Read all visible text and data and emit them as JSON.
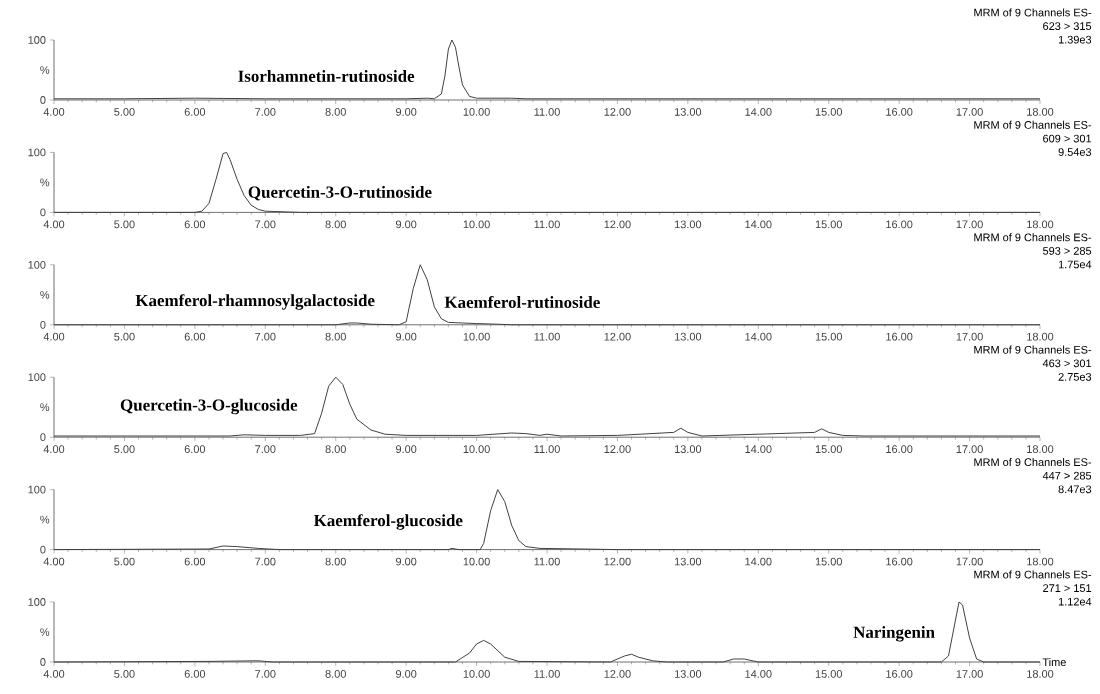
{
  "chart_data": [
    {
      "type": "line",
      "ylabel": "%",
      "annotations": [
        "Isorhamnetin-rutinoside",
        "MRM of 9 Channels ES-",
        "623 > 315",
        "1.39e3"
      ],
      "xlim": [
        4,
        18
      ],
      "ylim": [
        0,
        100
      ],
      "xticks": [
        {
          "value": 4,
          "label": "4.00"
        },
        {
          "value": 5,
          "label": "5.00"
        },
        {
          "value": 6,
          "label": "6.00"
        },
        {
          "value": 7,
          "label": "7.00"
        },
        {
          "value": 8,
          "label": "8.00"
        },
        {
          "value": 9,
          "label": "9.00"
        },
        {
          "value": 10,
          "label": "10.00"
        },
        {
          "value": 11,
          "label": "11.00"
        },
        {
          "value": 12,
          "label": "12.00"
        },
        {
          "value": 13,
          "label": "13.00"
        },
        {
          "value": 14,
          "label": "14.00"
        },
        {
          "value": 15,
          "label": "15.00"
        },
        {
          "value": 16,
          "label": "16.00"
        },
        {
          "value": 17,
          "label": "17.00"
        },
        {
          "value": 18,
          "label": "18.00"
        }
      ],
      "yticks": [
        0,
        100
      ],
      "series": [
        {
          "color": "#404040",
          "x": [
            4,
            5,
            6,
            7,
            8,
            9,
            9.3,
            9.4,
            9.5,
            9.55,
            9.6,
            9.65,
            9.7,
            9.75,
            9.8,
            9.9,
            10.0,
            10.5,
            10.7,
            12,
            14,
            16,
            18
          ],
          "values": [
            2,
            2,
            3,
            2,
            2,
            2,
            3,
            2,
            10,
            40,
            85,
            100,
            88,
            55,
            25,
            6,
            3,
            3,
            2,
            2,
            2,
            2,
            2
          ]
        }
      ]
    },
    {
      "type": "line",
      "ylabel": "%",
      "annotations": [
        "Quercetin-3-O-rutinoside",
        "MRM of 9 Channels ES-",
        "609 > 301",
        "9.54e3"
      ],
      "xlim": [
        4,
        18
      ],
      "ylim": [
        0,
        100
      ],
      "xticks": [
        {
          "value": 4,
          "label": "4.00"
        },
        {
          "value": 5,
          "label": "5.00"
        },
        {
          "value": 6,
          "label": "6.00"
        },
        {
          "value": 7,
          "label": "7.00"
        },
        {
          "value": 8,
          "label": "8.00"
        },
        {
          "value": 9,
          "label": "9.00"
        },
        {
          "value": 10,
          "label": "10.00"
        },
        {
          "value": 11,
          "label": "11.00"
        },
        {
          "value": 12,
          "label": "12.00"
        },
        {
          "value": 13,
          "label": "13.00"
        },
        {
          "value": 14,
          "label": "14.00"
        },
        {
          "value": 15,
          "label": "15.00"
        },
        {
          "value": 16,
          "label": "16.00"
        },
        {
          "value": 17,
          "label": "17.00"
        },
        {
          "value": 18,
          "label": "18.00"
        }
      ],
      "yticks": [
        0,
        100
      ],
      "series": [
        {
          "color": "#404040",
          "x": [
            4,
            6.0,
            6.1,
            6.2,
            6.3,
            6.4,
            6.45,
            6.5,
            6.6,
            6.7,
            6.8,
            6.9,
            7.0,
            7.5,
            18
          ],
          "values": [
            0,
            0,
            2,
            15,
            55,
            98,
            100,
            88,
            55,
            28,
            12,
            5,
            2,
            0,
            0
          ]
        }
      ]
    },
    {
      "type": "line",
      "ylabel": "%",
      "annotations": [
        "Kaemferol-rhamnosylgalactoside",
        "Kaemferol-rutinoside",
        "MRM of 9 Channels ES-",
        "593 > 285",
        "1.75e4"
      ],
      "xlim": [
        4,
        18
      ],
      "ylim": [
        0,
        100
      ],
      "xticks": [
        {
          "value": 4,
          "label": "4.00"
        },
        {
          "value": 5,
          "label": "5.00"
        },
        {
          "value": 6,
          "label": "6.00"
        },
        {
          "value": 7,
          "label": "7.00"
        },
        {
          "value": 8,
          "label": "8.00"
        },
        {
          "value": 9,
          "label": "9.00"
        },
        {
          "value": 10,
          "label": "10.00"
        },
        {
          "value": 11,
          "label": "11.00"
        },
        {
          "value": 12,
          "label": "12.00"
        },
        {
          "value": 13,
          "label": "13.00"
        },
        {
          "value": 14,
          "label": "14.00"
        },
        {
          "value": 15,
          "label": "15.00"
        },
        {
          "value": 16,
          "label": "16.00"
        },
        {
          "value": 17,
          "label": "17.00"
        },
        {
          "value": 18,
          "label": "18.00"
        }
      ],
      "yticks": [
        0,
        100
      ],
      "series": [
        {
          "color": "#404040",
          "x": [
            4,
            8.0,
            8.2,
            8.3,
            8.5,
            8.9,
            9.0,
            9.1,
            9.2,
            9.3,
            9.4,
            9.5,
            9.6,
            9.8,
            10.0,
            10.3,
            10.5,
            18
          ],
          "values": [
            0,
            0,
            3,
            3,
            1,
            0,
            5,
            60,
            100,
            75,
            30,
            10,
            4,
            3,
            2,
            1,
            0,
            0
          ]
        }
      ]
    },
    {
      "type": "line",
      "ylabel": "%",
      "annotations": [
        "Quercetin-3-O-glucoside",
        "MRM of 9 Channels ES-",
        "463 > 301",
        "2.75e3"
      ],
      "xlim": [
        4,
        18
      ],
      "ylim": [
        0,
        100
      ],
      "xticks": [
        {
          "value": 4,
          "label": "4.00"
        },
        {
          "value": 5,
          "label": "5.00"
        },
        {
          "value": 6,
          "label": "6.00"
        },
        {
          "value": 7,
          "label": "7.00"
        },
        {
          "value": 8,
          "label": "8.00"
        },
        {
          "value": 9,
          "label": "9.00"
        },
        {
          "value": 10,
          "label": "10.00"
        },
        {
          "value": 11,
          "label": "11.00"
        },
        {
          "value": 12,
          "label": "12.00"
        },
        {
          "value": 13,
          "label": "13.00"
        },
        {
          "value": 14,
          "label": "14.00"
        },
        {
          "value": 15,
          "label": "15.00"
        },
        {
          "value": 16,
          "label": "16.00"
        },
        {
          "value": 17,
          "label": "17.00"
        },
        {
          "value": 18,
          "label": "18.00"
        }
      ],
      "yticks": [
        0,
        100
      ],
      "series": [
        {
          "color": "#404040",
          "x": [
            4,
            6.5,
            6.7,
            7.0,
            7.5,
            7.7,
            7.8,
            7.9,
            8.0,
            8.1,
            8.2,
            8.3,
            8.5,
            8.7,
            9.0,
            10.0,
            10.5,
            10.7,
            10.9,
            11.0,
            11.2,
            12.0,
            12.8,
            12.9,
            13.0,
            13.2,
            14.8,
            14.9,
            15.0,
            15.2,
            15.5,
            18
          ],
          "values": [
            2,
            2,
            4,
            3,
            3,
            6,
            40,
            85,
            100,
            88,
            55,
            30,
            12,
            5,
            3,
            3,
            7,
            6,
            3,
            5,
            2,
            3,
            8,
            15,
            8,
            2,
            8,
            14,
            8,
            3,
            2,
            2
          ]
        }
      ]
    },
    {
      "type": "line",
      "ylabel": "%",
      "annotations": [
        "Kaemferol-glucoside",
        "MRM of 9 Channels ES-",
        "447 > 285",
        "8.47e3"
      ],
      "xlim": [
        4,
        18
      ],
      "ylim": [
        0,
        100
      ],
      "xticks": [
        {
          "value": 4,
          "label": "4.00"
        },
        {
          "value": 5,
          "label": "5.00"
        },
        {
          "value": 6,
          "label": "6.00"
        },
        {
          "value": 7,
          "label": "7.00"
        },
        {
          "value": 8,
          "label": "8.00"
        },
        {
          "value": 9,
          "label": "9.00"
        },
        {
          "value": 10,
          "label": "10.00"
        },
        {
          "value": 11,
          "label": "11.00"
        },
        {
          "value": 12,
          "label": "12.00"
        },
        {
          "value": 13,
          "label": "13.00"
        },
        {
          "value": 14,
          "label": "14.00"
        },
        {
          "value": 15,
          "label": "15.00"
        },
        {
          "value": 16,
          "label": "16.00"
        },
        {
          "value": 17,
          "label": "17.00"
        },
        {
          "value": 18,
          "label": "18.00"
        }
      ],
      "yticks": [
        0,
        100
      ],
      "series": [
        {
          "color": "#404040",
          "x": [
            4,
            6.2,
            6.4,
            6.6,
            6.9,
            7.2,
            9.6,
            9.65,
            9.75,
            10.05,
            10.1,
            10.2,
            10.3,
            10.4,
            10.5,
            10.6,
            10.7,
            10.9,
            11.5,
            12,
            18
          ],
          "values": [
            0,
            1,
            6,
            5,
            2,
            0,
            0,
            2,
            0,
            0,
            10,
            65,
            100,
            80,
            40,
            15,
            5,
            2,
            1,
            0,
            0
          ]
        }
      ]
    },
    {
      "type": "line",
      "ylabel": "%",
      "xlabel": "Time",
      "annotations": [
        "Naringenin",
        "MRM of 9 Channels ES-",
        "271 > 151",
        "1.12e4"
      ],
      "xlim": [
        4,
        18
      ],
      "ylim": [
        0,
        100
      ],
      "xticks": [
        {
          "value": 4,
          "label": "4.00"
        },
        {
          "value": 5,
          "label": "5.00"
        },
        {
          "value": 6,
          "label": "6.00"
        },
        {
          "value": 7,
          "label": "7.00"
        },
        {
          "value": 8,
          "label": "8.00"
        },
        {
          "value": 9,
          "label": "9.00"
        },
        {
          "value": 10,
          "label": "10.00"
        },
        {
          "value": 11,
          "label": "11.00"
        },
        {
          "value": 12,
          "label": "12.00"
        },
        {
          "value": 13,
          "label": "13.00"
        },
        {
          "value": 14,
          "label": "14.00"
        },
        {
          "value": 15,
          "label": "15.00"
        },
        {
          "value": 16,
          "label": "16.00"
        },
        {
          "value": 17,
          "label": "17.00"
        },
        {
          "value": 18,
          "label": "18.00"
        }
      ],
      "yticks": [
        0,
        100
      ],
      "series": [
        {
          "color": "#404040",
          "x": [
            4,
            6.2,
            6.9,
            7.1,
            9.7,
            9.9,
            10.0,
            10.1,
            10.2,
            10.4,
            10.6,
            11.9,
            12.1,
            12.2,
            12.3,
            12.5,
            12.7,
            13.5,
            13.65,
            13.8,
            14.0,
            16.6,
            16.7,
            16.8,
            16.85,
            16.9,
            17.0,
            17.1,
            17.2,
            18
          ],
          "values": [
            0,
            1,
            2,
            0,
            0,
            15,
            30,
            36,
            30,
            8,
            1,
            0,
            10,
            13,
            8,
            2,
            0,
            0,
            5,
            5,
            0,
            0,
            10,
            70,
            100,
            95,
            40,
            5,
            0,
            0
          ]
        }
      ]
    }
  ]
}
